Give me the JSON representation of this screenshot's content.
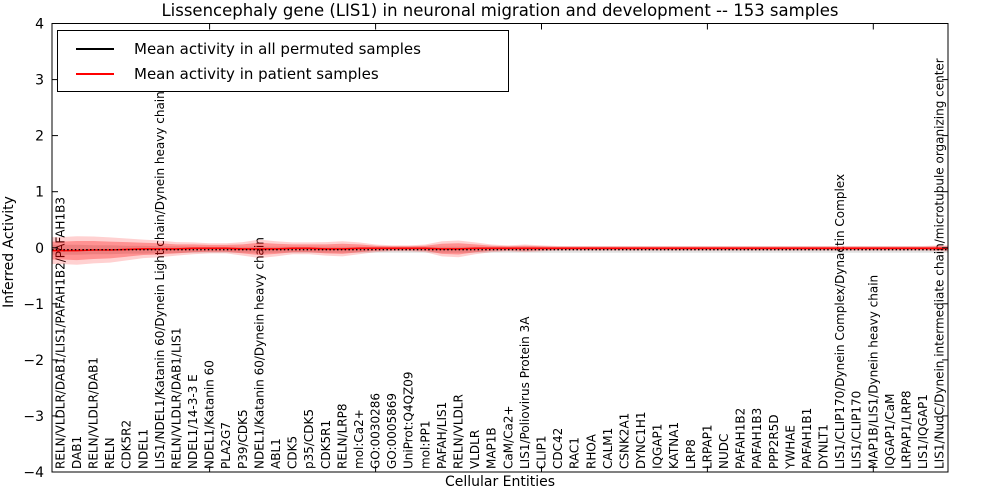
{
  "chart_data": {
    "type": "line",
    "title": "Lissencephaly gene (LIS1) in neuronal migration and development -- 153 samples",
    "xlabel": "Cellular Entities",
    "ylabel": "Inferred Activity",
    "ylim": [
      -4,
      4
    ],
    "yticks": [
      -4,
      -3,
      -2,
      -1,
      0,
      1,
      2,
      3,
      4
    ],
    "yticklabels": [
      "−4",
      "−3",
      "−2",
      "−1",
      "0",
      "1",
      "2",
      "3",
      "4"
    ],
    "xtick_every": 10,
    "grid": false,
    "legend_position": "upper left",
    "categories": [
      "RELN/VLDLR/DAB1/LIS1/PAFAH1B2/PAFAH1B3",
      "DAB1",
      "RELN/VLDLR/DAB1",
      "RELN",
      "CDK5R2",
      "NDEL1",
      "LIS1/NDEL1/Katanin 60/Dynein Light chain/Dynein heavy chain",
      "RELN/VLDLR/DAB1/LIS1",
      "NDEL1/14-3-3 E",
      "NDEL1/Katanin 60",
      "PLA2G7",
      "P39/CDK5",
      "NDEL1/Katanin 60/Dynein heavy chain",
      "ABL1",
      "CDK5",
      "p35/CDK5",
      "CDK5R1",
      "RELN/LRP8",
      "mol:Ca2+",
      "GO:0030286",
      "GO:0005869",
      "UniProt:Q4QZ09",
      "mol:PP1",
      "PAFAH/LIS1",
      "RELN/VLDLR",
      "VLDLR",
      "MAP1B",
      "CaM/Ca2+",
      "LIS1/Poliovirus Protein 3A",
      "CLIP1",
      "CDC42",
      "RAC1",
      "RHOA",
      "CALM1",
      "CSNK2A1",
      "DYNC1H1",
      "IQGAP1",
      "KATNA1",
      "LRP8",
      "LRPAP1",
      "NUDC",
      "PAFAH1B2",
      "PAFAH1B3",
      "PPP2R5D",
      "YWHAE",
      "PAFAH1B1",
      "DYNLT1",
      "LIS1/CLIP170/Dynein Complex/Dynactin Complex",
      "LIS1/CLIP170",
      "MAP1B/LIS1/Dynein heavy chain",
      "IQGAP1/CaM",
      "LRPAP1/LRP8",
      "LIS1/IQGAP1",
      "LIS1/NudC/Dynein intermediate chain/microtubule organizing center"
    ],
    "series": [
      {
        "name": "Mean activity in all permuted samples",
        "color": "#000000",
        "style": "dotted",
        "values": [
          -0.035,
          -0.035,
          -0.035,
          -0.035,
          -0.035,
          -0.035,
          -0.035,
          -0.035,
          -0.035,
          -0.035,
          -0.035,
          -0.035,
          -0.035,
          -0.035,
          -0.035,
          -0.035,
          -0.035,
          -0.035,
          -0.035,
          -0.035,
          -0.035,
          -0.035,
          -0.035,
          -0.035,
          -0.035,
          -0.035,
          -0.035,
          -0.035,
          -0.035,
          -0.035,
          -0.035,
          -0.035,
          -0.035,
          -0.035,
          -0.035,
          -0.035,
          -0.035,
          -0.035,
          -0.035,
          -0.035,
          -0.035,
          -0.035,
          -0.035,
          -0.035,
          -0.035,
          -0.035,
          -0.035,
          -0.035,
          -0.035,
          -0.035,
          -0.035,
          -0.035,
          -0.035,
          -0.035
        ],
        "band_half": [
          0.09,
          0.09,
          0.08,
          0.08,
          0.07,
          0.07,
          0.06,
          0.06,
          0.055,
          0.055,
          0.055,
          0.055,
          0.055,
          0.055,
          0.055,
          0.055,
          0.055,
          0.055,
          0.055,
          0.055,
          0.055,
          0.055,
          0.055,
          0.055,
          0.055,
          0.055,
          0.055,
          0.055,
          0.055,
          0.055,
          0.055,
          0.055,
          0.055,
          0.055,
          0.055,
          0.055,
          0.055,
          0.055,
          0.055,
          0.055,
          0.055,
          0.055,
          0.055,
          0.055,
          0.055,
          0.055,
          0.055,
          0.055,
          0.055,
          0.055,
          0.055,
          0.055,
          0.055,
          0.055
        ]
      },
      {
        "name": "Mean activity in patient samples",
        "color": "#ff0000",
        "style": "solid",
        "values": [
          -0.05,
          -0.05,
          -0.04,
          -0.04,
          -0.03,
          -0.02,
          -0.02,
          -0.02,
          -0.01,
          -0.01,
          -0.01,
          -0.02,
          -0.02,
          -0.02,
          -0.01,
          -0.01,
          -0.02,
          -0.02,
          -0.01,
          -0.01,
          -0.01,
          -0.01,
          -0.01,
          -0.02,
          -0.02,
          -0.01,
          -0.01,
          -0.01,
          -0.01,
          -0.01,
          -0.01,
          -0.01,
          -0.01,
          -0.01,
          -0.01,
          -0.01,
          -0.01,
          -0.01,
          -0.01,
          -0.01,
          -0.01,
          -0.01,
          -0.01,
          -0.01,
          -0.01,
          -0.01,
          -0.01,
          -0.01,
          -0.01,
          -0.01,
          -0.01,
          -0.01,
          -0.01,
          -0.01
        ],
        "band_half": [
          0.16,
          0.17,
          0.16,
          0.15,
          0.13,
          0.11,
          0.1,
          0.08,
          0.07,
          0.06,
          0.06,
          0.08,
          0.11,
          0.09,
          0.07,
          0.07,
          0.08,
          0.09,
          0.07,
          0.045,
          0.035,
          0.035,
          0.045,
          0.09,
          0.1,
          0.07,
          0.045,
          0.035,
          0.045,
          0.035,
          0.027,
          0.027,
          0.027,
          0.027,
          0.027,
          0.027,
          0.027,
          0.027,
          0.027,
          0.027,
          0.027,
          0.027,
          0.027,
          0.027,
          0.027,
          0.027,
          0.027,
          0.027,
          0.027,
          0.027,
          0.027,
          0.027,
          0.027,
          0.035
        ]
      }
    ]
  }
}
